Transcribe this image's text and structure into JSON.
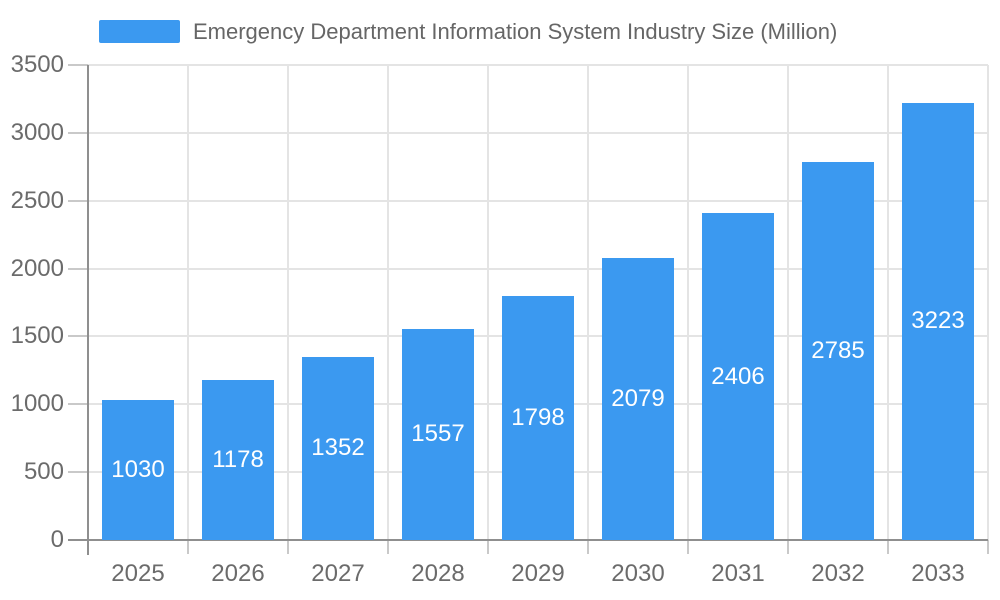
{
  "legend": {
    "label": "Emergency Department Information System Industry Size (Million)"
  },
  "chart_data": {
    "type": "bar",
    "title": "Emergency Department Information System Industry Size (Million)",
    "categories": [
      "2025",
      "2026",
      "2027",
      "2028",
      "2029",
      "2030",
      "2031",
      "2032",
      "2033"
    ],
    "values": [
      1030,
      1178,
      1352,
      1557,
      1798,
      2079,
      2406,
      2785,
      3223
    ],
    "xlabel": "",
    "ylabel": "",
    "ylim": [
      0,
      3500
    ],
    "ytick_step": 500,
    "ytick_labels": [
      "0",
      "500",
      "1000",
      "1500",
      "2000",
      "2500",
      "3000",
      "3500"
    ],
    "grid": true,
    "legend_position": "top-left",
    "bar_labels_inside": true,
    "colors": {
      "bar": "#3B99F0",
      "bar_label": "#ffffff",
      "axis_text": "#6b6b6b",
      "legend_text": "#666666",
      "grid": "#e4e4e4",
      "axis_line": "#8f8f8f",
      "tick": "#c9c9c9"
    }
  }
}
